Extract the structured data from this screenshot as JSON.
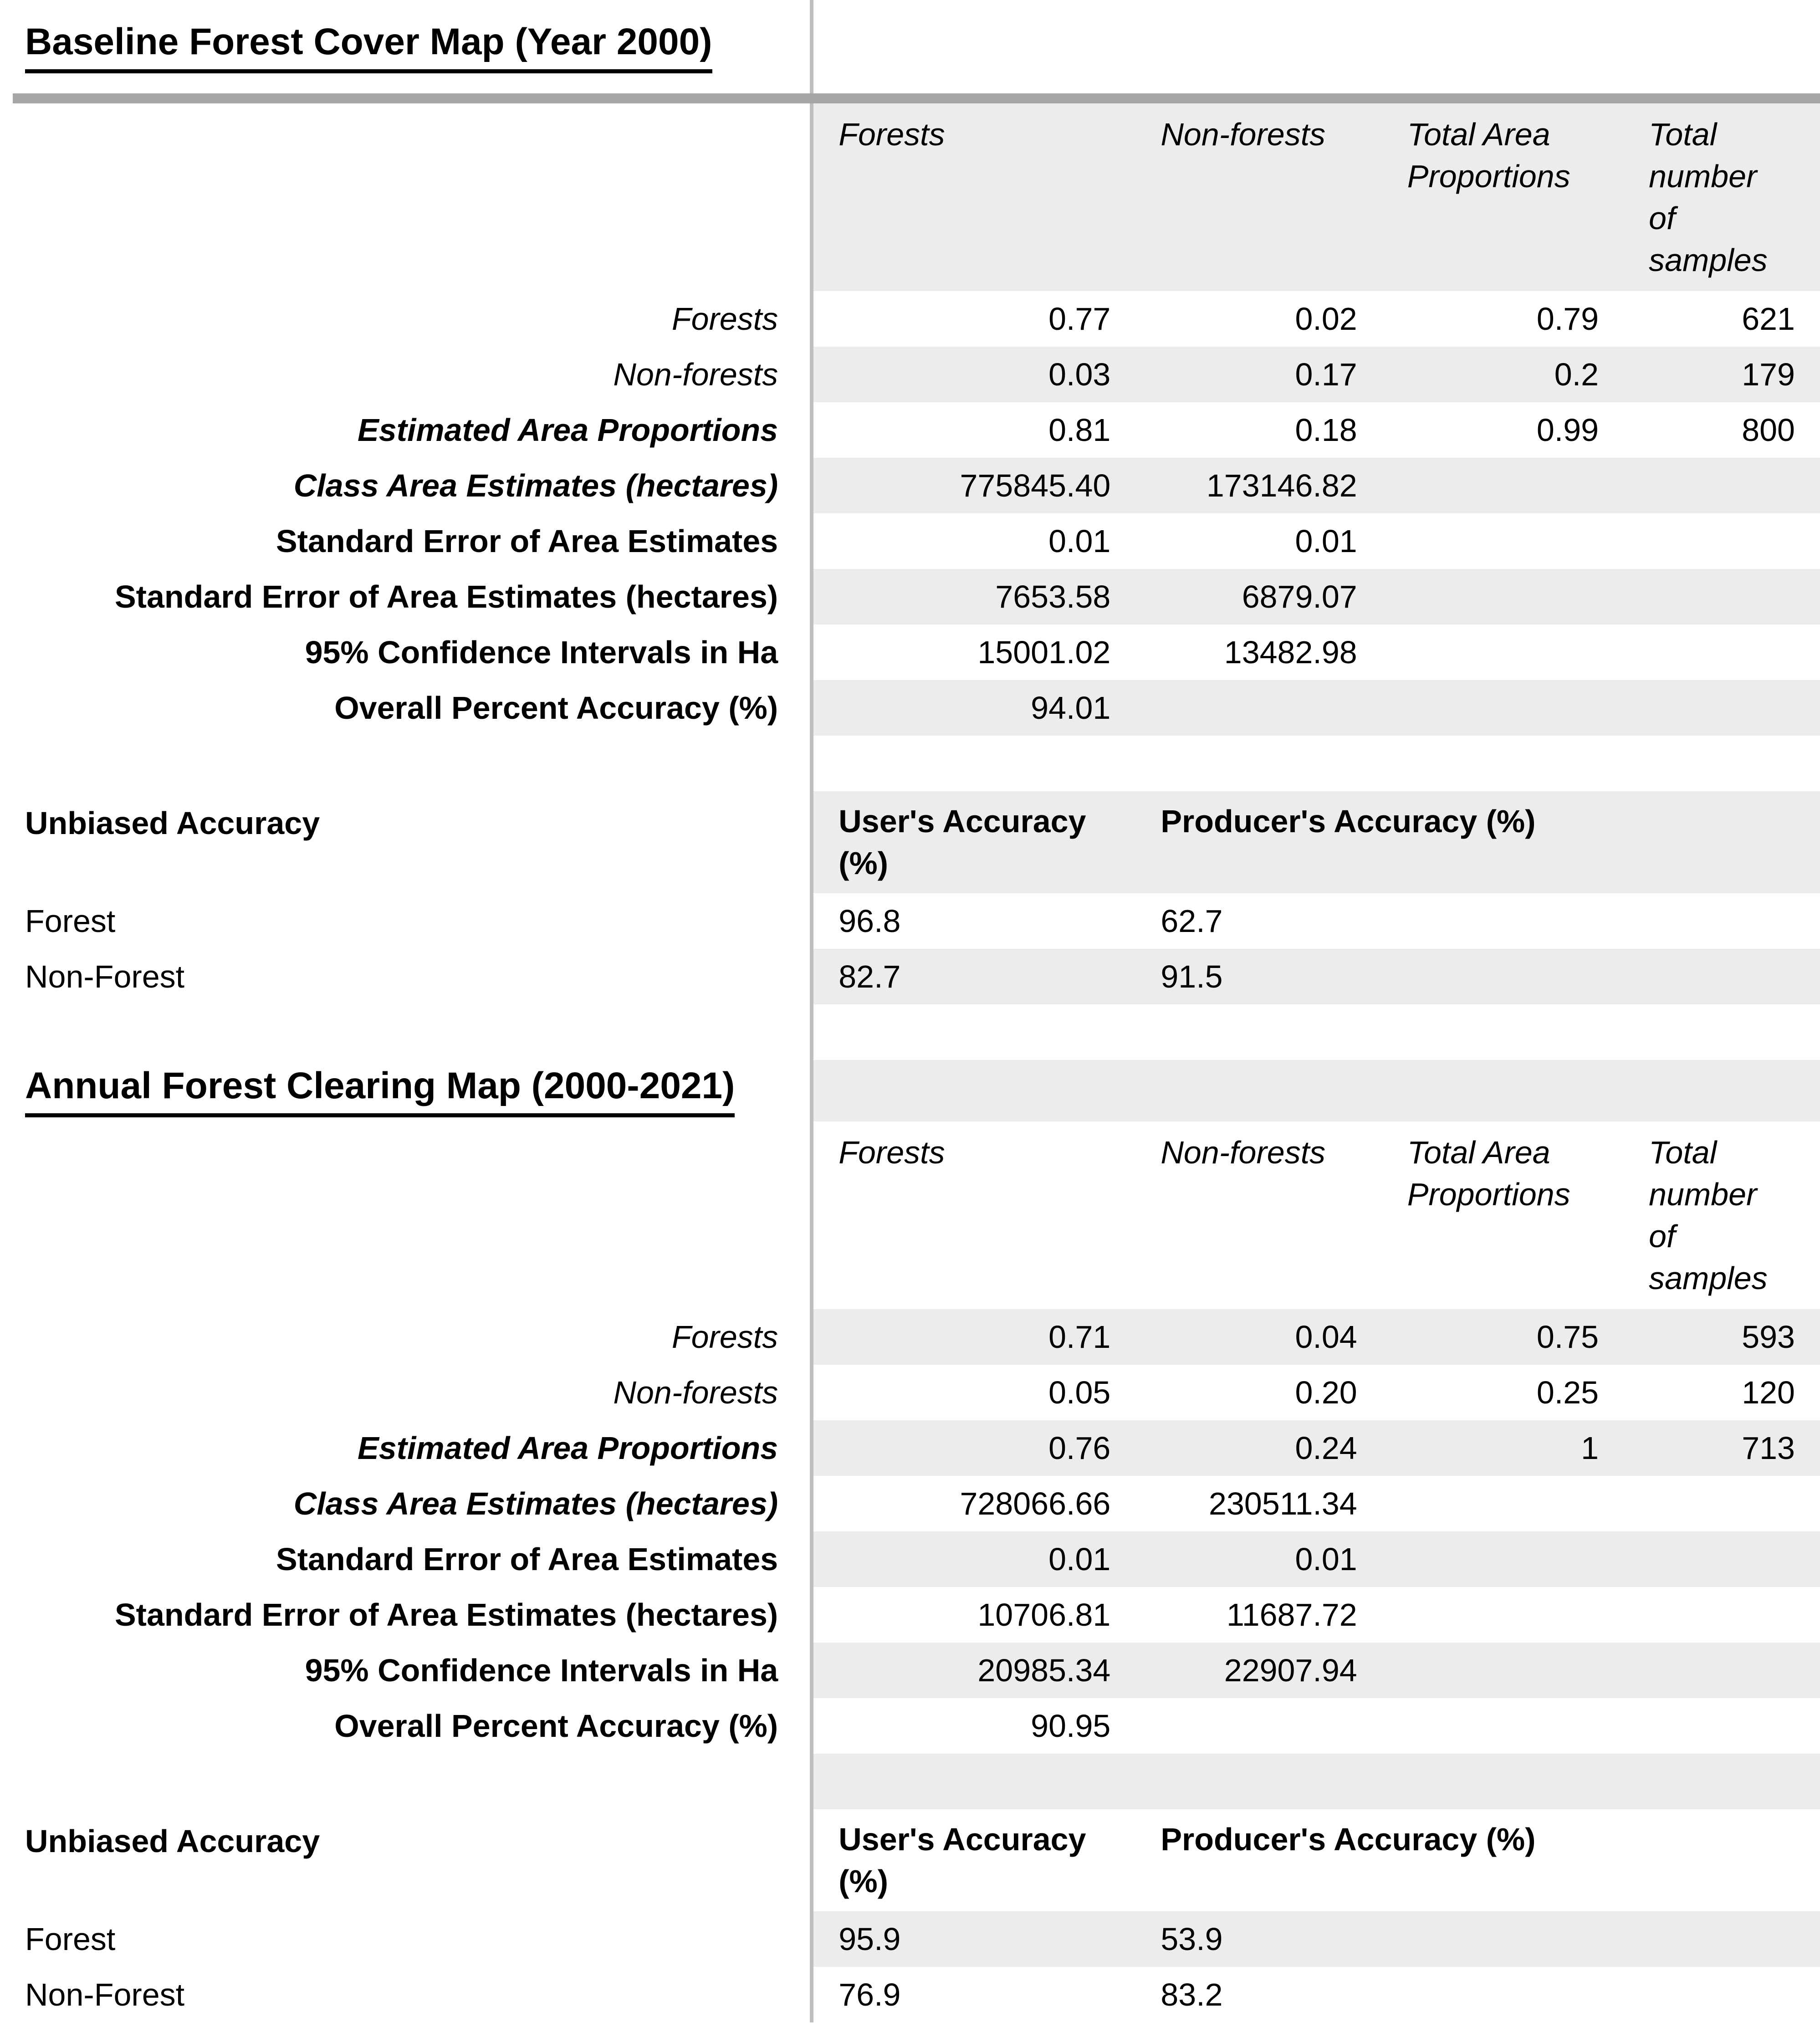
{
  "colors": {
    "background": "#ffffff",
    "stripe_gray": "#ececec",
    "divider_gray": "#bfbfbf",
    "title_bar_gray": "#a6a6a6",
    "text": "#000000"
  },
  "sections": [
    {
      "title": "Baseline Forest Cover Map (Year 2000)",
      "matrix": {
        "col_headers": [
          "Forests",
          "Non-forests",
          "Total Area Proportions",
          "Total number of samples"
        ],
        "rows": [
          {
            "label": "Forests",
            "values": [
              "0.77",
              "0.02",
              "0.79",
              "621"
            ]
          },
          {
            "label": "Non-forests",
            "values": [
              "0.03",
              "0.17",
              "0.2",
              "179"
            ]
          },
          {
            "label": "Estimated Area Proportions",
            "values": [
              "0.81",
              "0.18",
              "0.99",
              "800"
            ]
          },
          {
            "label": "Class Area Estimates (hectares)",
            "values": [
              "775845.40",
              "173146.82",
              "",
              ""
            ]
          },
          {
            "label": "Standard Error of Area Estimates",
            "values": [
              "0.01",
              "0.01",
              "",
              ""
            ]
          },
          {
            "label": "Standard Error of Area Estimates (hectares)",
            "values": [
              "7653.58",
              "6879.07",
              "",
              ""
            ]
          },
          {
            "label": "95% Confidence Intervals in Ha",
            "values": [
              "15001.02",
              "13482.98",
              "",
              ""
            ]
          },
          {
            "label": "Overall Percent Accuracy (%)",
            "values": [
              "94.01",
              "",
              "",
              ""
            ]
          }
        ]
      },
      "unbiased": {
        "heading": "Unbiased Accuracy",
        "col_headers": [
          "User's Accuracy (%)",
          "Producer's Accuracy (%)"
        ],
        "rows": [
          {
            "label": "Forest",
            "values": [
              "96.8",
              "62.7"
            ]
          },
          {
            "label": "Non-Forest",
            "values": [
              "82.7",
              "91.5"
            ]
          }
        ]
      }
    },
    {
      "title": "Annual Forest Clearing Map (2000-2021)",
      "matrix": {
        "col_headers": [
          "Forests",
          "Non-forests",
          "Total Area Proportions",
          "Total number of samples"
        ],
        "rows": [
          {
            "label": "Forests",
            "values": [
              "0.71",
              "0.04",
              "0.75",
              "593"
            ]
          },
          {
            "label": "Non-forests",
            "values": [
              "0.05",
              "0.20",
              "0.25",
              "120"
            ]
          },
          {
            "label": "Estimated Area Proportions",
            "values": [
              "0.76",
              "0.24",
              "1",
              "713"
            ]
          },
          {
            "label": "Class Area Estimates (hectares)",
            "values": [
              "728066.66",
              "230511.34",
              "",
              ""
            ]
          },
          {
            "label": "Standard Error of Area Estimates",
            "values": [
              "0.01",
              "0.01",
              "",
              ""
            ]
          },
          {
            "label": "Standard Error of Area Estimates (hectares)",
            "values": [
              "10706.81",
              "11687.72",
              "",
              ""
            ]
          },
          {
            "label": "95% Confidence Intervals in Ha",
            "values": [
              "20985.34",
              "22907.94",
              "",
              ""
            ]
          },
          {
            "label": "Overall Percent Accuracy (%)",
            "values": [
              "90.95",
              "",
              "",
              ""
            ]
          }
        ]
      },
      "unbiased": {
        "heading": "Unbiased Accuracy",
        "col_headers": [
          "User's Accuracy (%)",
          "Producer's Accuracy (%)"
        ],
        "rows": [
          {
            "label": "Forest",
            "values": [
              "95.9",
              "53.9"
            ]
          },
          {
            "label": "Non-Forest",
            "values": [
              "76.9",
              "83.2"
            ]
          }
        ]
      }
    }
  ]
}
